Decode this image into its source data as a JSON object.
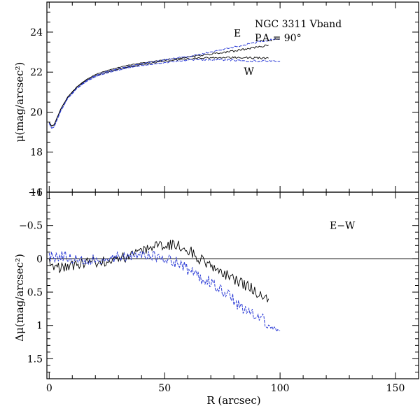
{
  "chart_data": [
    {
      "type": "line",
      "panel": "top",
      "title_lines": [
        "NGC 3311 Vband",
        "P.A.= 90°"
      ],
      "ylabel": "μ(mag/arcsec²)",
      "xlim": [
        -1,
        160
      ],
      "ylim": [
        25.5,
        16
      ],
      "x_ticks": [
        0,
        50,
        100,
        150
      ],
      "y_ticks": [
        16,
        18,
        20,
        22,
        24
      ],
      "y_tick_labels": [
        "16",
        "18",
        "20",
        "22",
        "24"
      ],
      "annotations": [
        {
          "text": "W",
          "x": 86.5,
          "y": 22.05
        },
        {
          "text": "E",
          "x": 81.5,
          "y": 23.95
        }
      ],
      "series": [
        {
          "name": "W (black)",
          "color": "#000000",
          "x": [
            0,
            1,
            2,
            3,
            5,
            8,
            12,
            16,
            20,
            25,
            30,
            35,
            40,
            45,
            50,
            55,
            60,
            65,
            70,
            75,
            80,
            85,
            90,
            95
          ],
          "y": [
            19.5,
            19.3,
            19.35,
            19.6,
            20.15,
            20.75,
            21.25,
            21.58,
            21.82,
            22.0,
            22.15,
            22.27,
            22.37,
            22.46,
            22.54,
            22.6,
            22.66,
            22.7,
            22.72,
            22.74,
            22.73,
            22.72,
            22.71,
            22.7
          ]
        },
        {
          "name": "E (black)",
          "color": "#000000",
          "x": [
            0,
            1,
            2,
            3,
            5,
            8,
            12,
            16,
            20,
            25,
            30,
            35,
            40,
            45,
            50,
            55,
            60,
            65,
            70,
            75,
            80,
            85,
            90,
            95
          ],
          "y": [
            19.5,
            19.3,
            19.35,
            19.6,
            20.15,
            20.75,
            21.27,
            21.62,
            21.88,
            22.08,
            22.23,
            22.36,
            22.45,
            22.53,
            22.62,
            22.68,
            22.75,
            22.82,
            22.9,
            22.98,
            23.05,
            23.15,
            23.25,
            23.35
          ]
        },
        {
          "name": "W (blue)",
          "color": "#2b3bd6",
          "x": [
            0,
            1,
            2,
            3,
            5,
            8,
            12,
            16,
            20,
            25,
            30,
            35,
            40,
            45,
            50,
            55,
            60,
            65,
            70,
            75,
            80,
            85,
            90,
            95,
            100
          ],
          "y": [
            19.45,
            19.2,
            19.25,
            19.5,
            20.05,
            20.68,
            21.18,
            21.53,
            21.77,
            21.95,
            22.1,
            22.22,
            22.32,
            22.4,
            22.48,
            22.55,
            22.6,
            22.62,
            22.62,
            22.62,
            22.6,
            22.55,
            22.55,
            22.55,
            22.55
          ]
        },
        {
          "name": "E (blue)",
          "color": "#2b3bd6",
          "x": [
            0,
            1,
            2,
            3,
            5,
            8,
            12,
            16,
            20,
            25,
            30,
            35,
            40,
            45,
            50,
            55,
            60,
            65,
            70,
            75,
            80,
            85,
            90,
            95,
            100
          ],
          "y": [
            19.45,
            19.2,
            19.25,
            19.5,
            20.05,
            20.68,
            21.2,
            21.56,
            21.83,
            22.03,
            22.18,
            22.3,
            22.42,
            22.52,
            22.6,
            22.7,
            22.78,
            22.88,
            23.0,
            23.12,
            23.25,
            23.38,
            23.5,
            23.6,
            23.68
          ]
        }
      ]
    },
    {
      "type": "line",
      "panel": "bottom",
      "ylabel": "Δμ(mag/arcsec²)",
      "xlabel": "R (arcsec)",
      "xlim": [
        -1,
        160
      ],
      "ylim": [
        -1,
        1.8
      ],
      "x_ticks": [
        0,
        50,
        100,
        150
      ],
      "x_tick_labels": [
        "0",
        "50",
        "100",
        "150"
      ],
      "y_ticks": [
        -1,
        -0.5,
        0,
        0.5,
        1,
        1.5
      ],
      "y_tick_labels": [
        "−1",
        "−0.5",
        "0",
        "0.5",
        "1",
        "1.5"
      ],
      "reference_line": 0,
      "annotations": [
        {
          "text": "E−W",
          "x": 127,
          "y": -0.5
        }
      ],
      "series": [
        {
          "name": "E−W (black)",
          "color": "#000000",
          "x": [
            0,
            2,
            5,
            8,
            12,
            16,
            20,
            25,
            30,
            35,
            40,
            45,
            50,
            55,
            60,
            62,
            65,
            68,
            70,
            73,
            76,
            80,
            84,
            88,
            92,
            95
          ],
          "y": [
            0.05,
            0.1,
            0.15,
            0.1,
            0.08,
            0.06,
            0.05,
            0.03,
            0.0,
            -0.05,
            -0.12,
            -0.2,
            -0.22,
            -0.2,
            -0.15,
            -0.1,
            0.0,
            0.08,
            0.1,
            0.2,
            0.22,
            0.3,
            0.38,
            0.45,
            0.55,
            0.6
          ]
        },
        {
          "name": "E−W (blue)",
          "color": "#2b3bd6",
          "x": [
            0,
            2,
            5,
            8,
            12,
            16,
            20,
            25,
            30,
            35,
            40,
            45,
            50,
            55,
            58,
            62,
            66,
            70,
            74,
            78,
            82,
            86,
            90,
            94,
            98,
            100
          ],
          "y": [
            -0.05,
            -0.02,
            -0.05,
            -0.03,
            0.0,
            0.02,
            0.02,
            0.0,
            -0.02,
            -0.05,
            -0.08,
            -0.05,
            -0.02,
            0.05,
            0.12,
            0.2,
            0.3,
            0.35,
            0.45,
            0.55,
            0.7,
            0.78,
            0.85,
            0.95,
            1.0,
            1.08
          ]
        }
      ]
    }
  ]
}
